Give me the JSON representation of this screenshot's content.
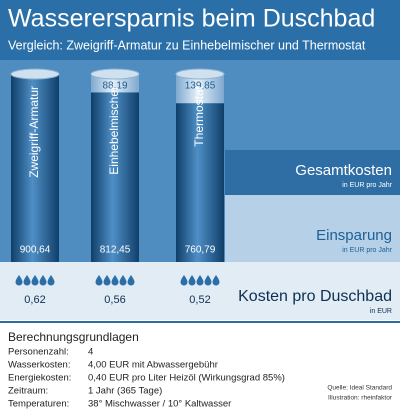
{
  "chart_data": {
    "type": "bar",
    "title": "Wasserersparnis beim Duschbad",
    "subtitle": "Vergleich: Zweigriff-Armatur zu Einhebelmischer und Thermostat",
    "categories": [
      "Zweigriff-Armatur",
      "Einhebelmischer",
      "Thermostat"
    ],
    "series": [
      {
        "name": "Gesamtkosten",
        "unit": "in EUR pro Jahr",
        "color": "#1d5f96",
        "values": [
          900.64,
          812.45,
          760.79
        ],
        "value_labels": [
          "900,64",
          "812,45",
          "760,79"
        ]
      },
      {
        "name": "Einsparung",
        "unit": "in EUR pro Jahr",
        "color": "#a9c7e2",
        "values": [
          null,
          88.19,
          139.85
        ],
        "value_labels": [
          null,
          "88,19",
          "139,85"
        ]
      }
    ],
    "per_shower": {
      "name": "Kosten pro Duschbad",
      "unit": "in EUR",
      "values": [
        0.62,
        0.56,
        0.52
      ],
      "value_labels": [
        "0,62",
        "0,56",
        "0,52"
      ]
    }
  },
  "basis": {
    "title": "Berechnungsgrundlagen",
    "rows": [
      [
        "Personenzahl:",
        "4"
      ],
      [
        "Wasserkosten:",
        "4,00 EUR mit Abwassergebühr"
      ],
      [
        "Energiekosten:",
        "0,40 EUR pro Liter Heizöl (Wirkungsgrad 85%)"
      ],
      [
        "Zeitraum:",
        "1 Jahr (365 Tage)"
      ],
      [
        "Temperaturen:",
        "38° Mischwasser / 10° Kaltwasser"
      ]
    ]
  },
  "source": "Quelle: Ideal Standard",
  "illustration": "Illustration: rheinfaktor"
}
